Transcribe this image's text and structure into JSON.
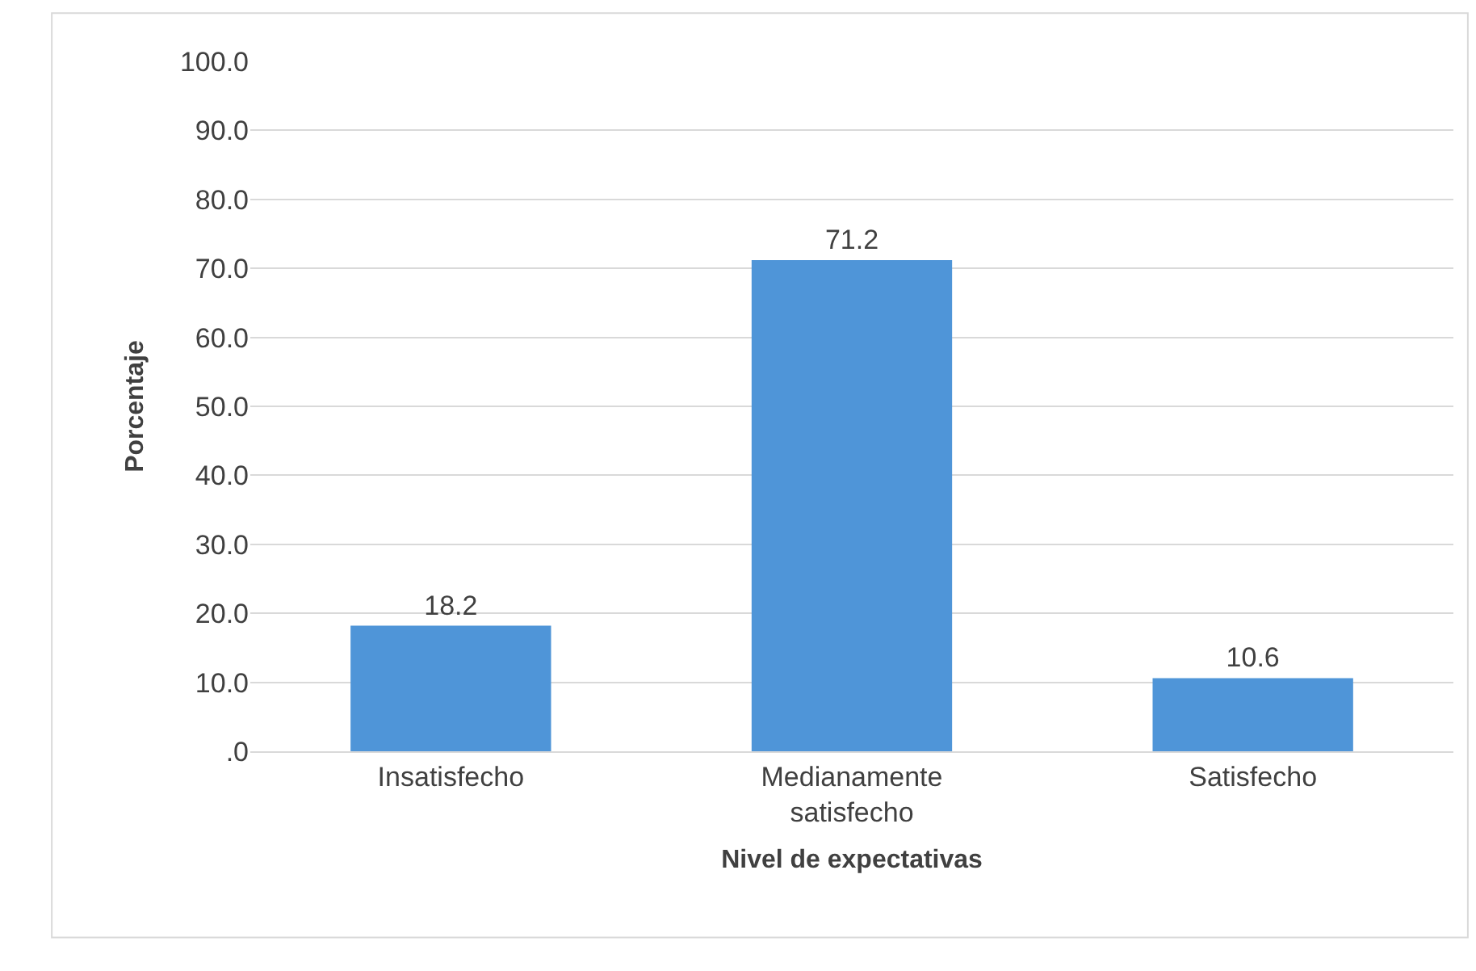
{
  "chart_data": {
    "type": "bar",
    "xlabel": "Nivel de expectativas",
    "ylabel": "Porcentaje",
    "categories": [
      "Insatisfecho",
      "Medianamente satisfecho",
      "Satisfecho"
    ],
    "values": [
      18.2,
      71.2,
      10.6
    ],
    "color": "#4f95d8",
    "ylim": [
      0,
      100
    ],
    "yticks": [
      {
        "value": 0,
        "label": ".0"
      },
      {
        "value": 10,
        "label": "10.0"
      },
      {
        "value": 20,
        "label": "20.0"
      },
      {
        "value": 30,
        "label": "30.0"
      },
      {
        "value": 40,
        "label": "40.0"
      },
      {
        "value": 50,
        "label": "50.0"
      },
      {
        "value": 60,
        "label": "60.0"
      },
      {
        "value": 70,
        "label": "70.0"
      },
      {
        "value": 80,
        "label": "80.0"
      },
      {
        "value": 90,
        "label": "90.0"
      },
      {
        "value": 100,
        "label": "100.0"
      }
    ],
    "grid": "y",
    "data_labels": true
  }
}
